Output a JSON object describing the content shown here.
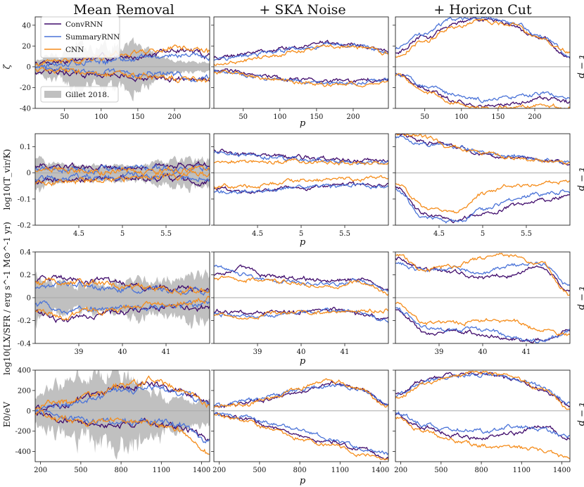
{
  "colors": {
    "convrnn": "#3f0a6b",
    "summaryrnn": "#4a73d8",
    "cnn": "#f58c1a",
    "gillet": "#c0c0c0",
    "zero": "#a9a9a9"
  },
  "chart_data": {
    "type": "line",
    "columns": [
      "Mean Removal",
      "+ SKA Noise",
      "+ Horizon Cut"
    ],
    "right_label": "t − p",
    "legend": {
      "position": "upper-left of first panel",
      "entries": [
        "ConvRNN",
        "SummaryRNN",
        "CNN"
      ],
      "band_entry": "Gillet 2018."
    },
    "series_names": [
      "ConvRNN",
      "SummaryRNN",
      "CNN"
    ],
    "rows": [
      {
        "ylabel": "ζ",
        "xlabel": "p",
        "xlim": [
          10,
          248
        ],
        "ylim": [
          -40,
          48
        ],
        "xticks": [
          50,
          100,
          150,
          200
        ],
        "yticks": [
          40,
          20,
          0,
          -20,
          -40
        ],
        "band_amplitude": [
          5,
          22
        ],
        "panels": [
          {
            "upper": {
              "ConvRNN": [
                4,
                6,
                8,
                9,
                12,
                16,
                12
              ],
              "SummaryRNN": [
                1,
                3,
                5,
                7,
                9,
                12,
                8
              ],
              "CNN": [
                2,
                5,
                9,
                13,
                16,
                20,
                14
              ]
            },
            "lower": {
              "ConvRNN": [
                -4,
                -6,
                -8,
                -9,
                -11,
                -13,
                -12
              ],
              "SummaryRNN": [
                -1,
                -3,
                -5,
                -6,
                -7,
                -9,
                -10
              ],
              "CNN": [
                -1,
                -4,
                -7,
                -9,
                -10,
                -12,
                -14
              ]
            }
          },
          {
            "upper": {
              "ConvRNN": [
                9,
                12,
                16,
                20,
                23,
                21,
                14
              ],
              "SummaryRNN": [
                7,
                10,
                14,
                18,
                21,
                20,
                13
              ],
              "CNN": [
                3,
                6,
                11,
                16,
                20,
                19,
                13
              ]
            },
            "lower": {
              "ConvRNN": [
                -3,
                -6,
                -10,
                -13,
                -14,
                -14,
                -11
              ],
              "SummaryRNN": [
                -4,
                -7,
                -11,
                -14,
                -16,
                -15,
                -12
              ],
              "CNN": [
                -5,
                -8,
                -12,
                -15,
                -17,
                -16,
                -14
              ]
            }
          },
          {
            "upper": {
              "ConvRNN": [
                14,
                28,
                42,
                47,
                40,
                28,
                8
              ],
              "SummaryRNN": [
                18,
                32,
                46,
                48,
                42,
                30,
                10
              ],
              "CNN": [
                10,
                25,
                38,
                45,
                40,
                26,
                14
              ]
            },
            "lower": {
              "ConvRNN": [
                -6,
                -22,
                -32,
                -38,
                -36,
                -30,
                -34
              ],
              "SummaryRNN": [
                -6,
                -18,
                -26,
                -32,
                -30,
                -25,
                -30
              ],
              "CNN": [
                -8,
                -24,
                -34,
                -40,
                -39,
                -36,
                -40
              ]
            }
          }
        ]
      },
      {
        "ylabel": "log10(T_vir/K)",
        "xlabel": "p",
        "xlim": [
          4.0,
          6.0
        ],
        "ylim": [
          -0.2,
          0.15
        ],
        "xticks": [
          4.5,
          5.0,
          5.5
        ],
        "yticks": [
          0.1,
          0.0,
          -0.1,
          -0.2
        ],
        "band_amplitude": [
          0.05,
          0.025
        ],
        "panels": [
          {
            "upper": {
              "ConvRNN": [
                0.03,
                0.025,
                0.02,
                0.02,
                0.025,
                0.03,
                0.035
              ],
              "SummaryRNN": [
                0.02,
                0.018,
                0.015,
                0.015,
                0.018,
                0.02,
                0.025
              ],
              "CNN": [
                0.01,
                0.008,
                0.005,
                0.004,
                0.005,
                0.008,
                0.01
              ]
            },
            "lower": {
              "ConvRNN": [
                -0.03,
                -0.03,
                -0.025,
                -0.02,
                -0.02,
                -0.025,
                -0.035
              ],
              "SummaryRNN": [
                -0.02,
                -0.018,
                -0.015,
                -0.012,
                -0.012,
                -0.015,
                -0.02
              ],
              "CNN": [
                -0.04,
                -0.035,
                -0.025,
                -0.018,
                -0.012,
                -0.008,
                -0.005
              ]
            }
          },
          {
            "upper": {
              "ConvRNN": [
                0.09,
                0.075,
                0.065,
                0.06,
                0.055,
                0.05,
                0.048
              ],
              "SummaryRNN": [
                0.08,
                0.07,
                0.06,
                0.052,
                0.045,
                0.04,
                0.038
              ],
              "CNN": [
                0.04,
                0.045,
                0.045,
                0.042,
                0.04,
                0.038,
                0.035
              ]
            },
            "lower": {
              "ConvRNN": [
                -0.06,
                -0.07,
                -0.06,
                -0.055,
                -0.05,
                -0.045,
                -0.05
              ],
              "SummaryRNN": [
                -0.07,
                -0.075,
                -0.065,
                -0.055,
                -0.05,
                -0.045,
                -0.05
              ],
              "CNN": [
                -0.05,
                -0.055,
                -0.04,
                -0.03,
                -0.025,
                -0.02,
                -0.015
              ]
            }
          },
          {
            "upper": {
              "ConvRNN": [
                0.15,
                0.12,
                0.1,
                0.07,
                0.06,
                0.05,
                0.04
              ],
              "SummaryRNN": [
                0.14,
                0.11,
                0.095,
                0.08,
                0.065,
                0.05,
                0.038
              ],
              "CNN": [
                0.15,
                0.14,
                0.1,
                0.075,
                0.06,
                0.045,
                0.035
              ]
            },
            "lower": {
              "ConvRNN": [
                -0.05,
                -0.16,
                -0.18,
                -0.16,
                -0.13,
                -0.1,
                -0.09
              ],
              "SummaryRNN": [
                -0.06,
                -0.17,
                -0.19,
                -0.14,
                -0.1,
                -0.08,
                -0.07
              ],
              "CNN": [
                -0.04,
                -0.13,
                -0.15,
                -0.08,
                -0.05,
                -0.04,
                -0.03
              ]
            }
          }
        ]
      },
      {
        "ylabel": "log10(LX/SFR / erg s^-1 M⊙^-1 yr)",
        "xlabel": "p",
        "xlim": [
          38.0,
          42.0
        ],
        "ylim": [
          -0.4,
          0.4
        ],
        "xticks": [
          39,
          40,
          41
        ],
        "yticks": [
          0.4,
          0.2,
          0.0,
          -0.2,
          -0.4
        ],
        "band_amplitude": [
          0.18,
          0.12
        ],
        "panels": [
          {
            "upper": {
              "ConvRNN": [
                0.15,
                0.18,
                0.15,
                0.12,
                0.1,
                0.08,
                0.05
              ],
              "SummaryRNN": [
                0.1,
                0.12,
                0.1,
                0.08,
                0.07,
                0.06,
                0.05
              ],
              "CNN": [
                0.14,
                0.14,
                0.12,
                0.1,
                0.08,
                0.07,
                0.06
              ]
            },
            "lower": {
              "ConvRNN": [
                -0.12,
                -0.2,
                -0.14,
                -0.12,
                -0.1,
                -0.09,
                -0.08
              ],
              "SummaryRNN": [
                -0.05,
                -0.12,
                -0.1,
                -0.08,
                -0.07,
                -0.06,
                -0.05
              ],
              "CNN": [
                -0.1,
                -0.16,
                -0.13,
                -0.1,
                -0.07,
                -0.04,
                -0.01
              ]
            }
          },
          {
            "upper": {
              "ConvRNN": [
                0.2,
                0.26,
                0.18,
                0.16,
                0.15,
                0.17,
                0.05
              ],
              "SummaryRNN": [
                0.28,
                0.2,
                0.15,
                0.12,
                0.12,
                0.15,
                0.06
              ],
              "CNN": [
                0.18,
                0.16,
                0.14,
                0.12,
                0.1,
                0.14,
                0.04
              ]
            },
            "lower": {
              "ConvRNN": [
                -0.12,
                -0.14,
                -0.13,
                -0.12,
                -0.1,
                -0.14,
                -0.18
              ],
              "SummaryRNN": [
                -0.14,
                -0.16,
                -0.15,
                -0.13,
                -0.12,
                -0.12,
                -0.2
              ],
              "CNN": [
                -0.15,
                -0.18,
                -0.14,
                -0.12,
                -0.12,
                -0.12,
                -0.11
              ]
            }
          },
          {
            "upper": {
              "ConvRNN": [
                0.35,
                0.25,
                0.22,
                0.18,
                0.2,
                0.28,
                0.05
              ],
              "SummaryRNN": [
                0.3,
                0.24,
                0.26,
                0.22,
                0.28,
                0.3,
                0.1
              ],
              "CNN": [
                0.38,
                0.24,
                0.28,
                0.35,
                0.38,
                0.3,
                0.02
              ]
            },
            "lower": {
              "ConvRNN": [
                -0.1,
                -0.3,
                -0.3,
                -0.32,
                -0.36,
                -0.37,
                -0.28
              ],
              "SummaryRNN": [
                -0.08,
                -0.26,
                -0.28,
                -0.28,
                -0.34,
                -0.38,
                -0.3
              ],
              "CNN": [
                -0.05,
                -0.22,
                -0.22,
                -0.2,
                -0.2,
                -0.28,
                -0.32
              ]
            }
          }
        ]
      },
      {
        "ylabel": "E0/eV",
        "xlabel": "p",
        "xlim": [
          160,
          1460
        ],
        "ylim": [
          -500,
          400
        ],
        "xticks": [
          200,
          500,
          800,
          1100,
          1400
        ],
        "yticks": [
          400,
          200,
          0,
          -200,
          -400
        ],
        "band_amplitude": [
          120,
          350
        ],
        "panels": [
          {
            "upper": {
              "ConvRNN": [
                20,
                60,
                150,
                230,
                260,
                200,
                80
              ],
              "SummaryRNN": [
                10,
                50,
                120,
                200,
                230,
                180,
                70
              ],
              "CNN": [
                30,
                80,
                160,
                250,
                290,
                230,
                60
              ]
            },
            "lower": {
              "ConvRNN": [
                -20,
                -80,
                -140,
                -150,
                -120,
                -160,
                -280
              ],
              "SummaryRNN": [
                -10,
                -60,
                -100,
                -110,
                -100,
                -140,
                -300
              ],
              "CNN": [
                -30,
                -90,
                -120,
                -100,
                -130,
                -200,
                -420
              ]
            }
          },
          {
            "upper": {
              "ConvRNN": [
                60,
                80,
                120,
                200,
                280,
                220,
                50
              ],
              "SummaryRNN": [
                50,
                90,
                150,
                220,
                260,
                210,
                60
              ],
              "CNN": [
                40,
                60,
                130,
                230,
                300,
                220,
                40
              ]
            },
            "lower": {
              "ConvRNN": [
                -30,
                -80,
                -160,
                -250,
                -310,
                -380,
                -460
              ],
              "SummaryRNN": [
                -20,
                -60,
                -130,
                -200,
                -280,
                -360,
                -430
              ],
              "CNN": [
                -40,
                -100,
                -190,
                -280,
                -340,
                -420,
                -480
              ]
            }
          },
          {
            "upper": {
              "ConvRNN": [
                170,
                300,
                360,
                370,
                320,
                200,
                60
              ],
              "SummaryRNN": [
                150,
                290,
                350,
                360,
                330,
                240,
                80
              ],
              "CNN": [
                130,
                260,
                340,
                380,
                340,
                220,
                20
              ]
            },
            "lower": {
              "ConvRNN": [
                -40,
                -170,
                -240,
                -270,
                -220,
                -150,
                -260
              ],
              "SummaryRNN": [
                -20,
                -140,
                -180,
                -200,
                -160,
                -180,
                -250
              ],
              "CNN": [
                -60,
                -200,
                -300,
                -340,
                -360,
                -380,
                -460
              ]
            }
          }
        ]
      }
    ]
  }
}
